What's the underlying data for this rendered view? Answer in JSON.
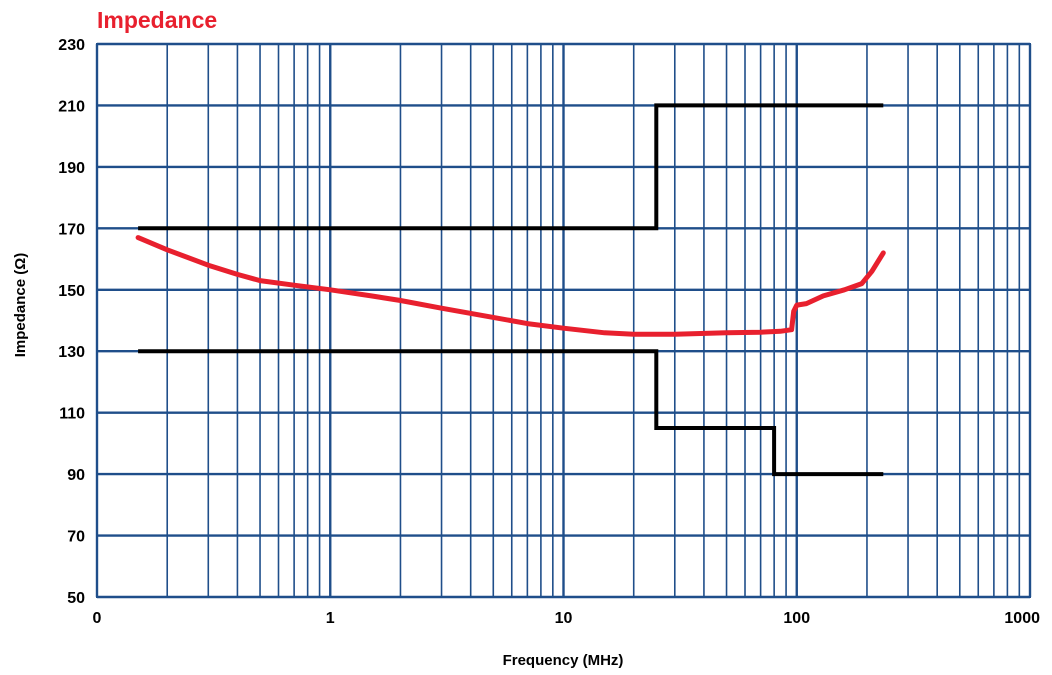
{
  "chart_data": {
    "type": "line",
    "title": "Impedance",
    "xlabel": "Frequency (MHz)",
    "ylabel": "Impedance (Ω)",
    "x_scale": "log",
    "xlim": [
      0.1,
      1000
    ],
    "ylim": [
      50,
      230
    ],
    "x_ticks": [
      {
        "value": 0.1,
        "label": "0"
      },
      {
        "value": 1,
        "label": "1"
      },
      {
        "value": 10,
        "label": "10"
      },
      {
        "value": 100,
        "label": "100"
      },
      {
        "value": 1000,
        "label": "1000"
      }
    ],
    "y_ticks": [
      {
        "value": 50,
        "label": "50"
      },
      {
        "value": 70,
        "label": "70"
      },
      {
        "value": 90,
        "label": "90"
      },
      {
        "value": 110,
        "label": "110"
      },
      {
        "value": 130,
        "label": "130"
      },
      {
        "value": 150,
        "label": "150"
      },
      {
        "value": 170,
        "label": "170"
      },
      {
        "value": 190,
        "label": "190"
      },
      {
        "value": 210,
        "label": "210"
      },
      {
        "value": 230,
        "label": "230"
      }
    ],
    "grid": true,
    "legend": "none",
    "series": [
      {
        "role": "measured",
        "color": "#e8202e",
        "points": [
          [
            0.15,
            167
          ],
          [
            0.2,
            163
          ],
          [
            0.3,
            158
          ],
          [
            0.4,
            155
          ],
          [
            0.5,
            153
          ],
          [
            0.7,
            151.5
          ],
          [
            1,
            150
          ],
          [
            1.5,
            148
          ],
          [
            2,
            146.5
          ],
          [
            3,
            144
          ],
          [
            5,
            141
          ],
          [
            7,
            139
          ],
          [
            10,
            137.5
          ],
          [
            15,
            136
          ],
          [
            20,
            135.5
          ],
          [
            30,
            135.5
          ],
          [
            50,
            136
          ],
          [
            70,
            136.2
          ],
          [
            85,
            136.5
          ],
          [
            95,
            137
          ],
          [
            97,
            143
          ],
          [
            100,
            145
          ],
          [
            110,
            145.5
          ],
          [
            130,
            148
          ],
          [
            160,
            150
          ],
          [
            190,
            152
          ],
          [
            210,
            156
          ],
          [
            235,
            162
          ]
        ]
      },
      {
        "role": "upper-limit",
        "color": "#000000",
        "points": [
          [
            0.15,
            170
          ],
          [
            25,
            170
          ],
          [
            25,
            210
          ],
          [
            235,
            210
          ]
        ]
      },
      {
        "role": "lower-limit",
        "color": "#000000",
        "points": [
          [
            0.15,
            130
          ],
          [
            25,
            130
          ],
          [
            25,
            105
          ],
          [
            80,
            105
          ],
          [
            80,
            90
          ],
          [
            235,
            90
          ]
        ]
      }
    ],
    "colors": {
      "grid": "#1f4e8a",
      "title": "#e8202e",
      "text": "#000000"
    }
  }
}
